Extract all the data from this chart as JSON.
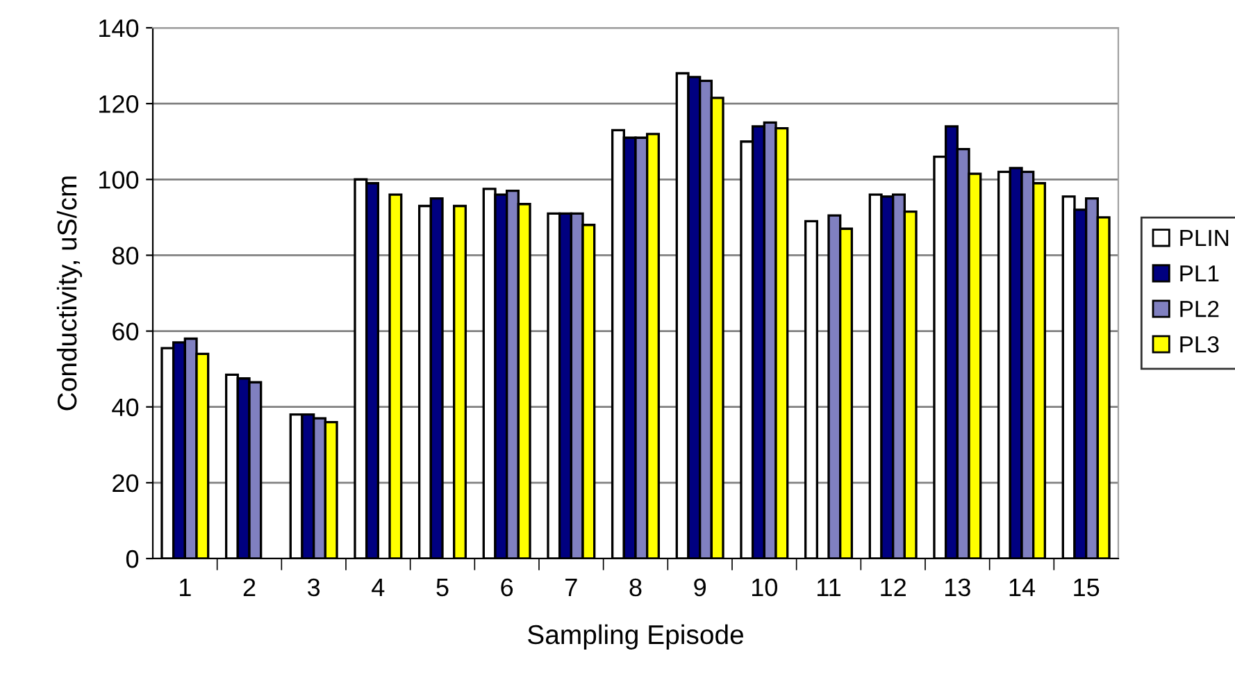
{
  "chart_data": {
    "type": "bar",
    "xlabel": "Sampling Episode",
    "ylabel": "Conductivity, uS/cm",
    "categories": [
      "1",
      "2",
      "3",
      "4",
      "5",
      "6",
      "7",
      "8",
      "9",
      "10",
      "11",
      "12",
      "13",
      "14",
      "15"
    ],
    "series": [
      {
        "name": "PLIN",
        "color": "#ffffff",
        "values": [
          55.5,
          48.5,
          38,
          100,
          93,
          97.5,
          91,
          113,
          128,
          110,
          89,
          96,
          106,
          102,
          95.5
        ]
      },
      {
        "name": "PL1",
        "color": "#000080",
        "values": [
          57,
          47.5,
          38,
          99,
          95,
          96,
          91,
          111,
          127,
          114,
          null,
          95.5,
          114,
          103,
          92
        ]
      },
      {
        "name": "PL2",
        "color": "#8080c0",
        "values": [
          58,
          46.5,
          37,
          null,
          null,
          97,
          91,
          111,
          126,
          115,
          90.5,
          96,
          108,
          102,
          95
        ]
      },
      {
        "name": "PL3",
        "color": "#ffff00",
        "values": [
          54,
          null,
          36,
          96,
          93,
          93.5,
          88,
          112,
          121.5,
          113.5,
          87,
          91.5,
          101.5,
          99,
          90
        ]
      }
    ],
    "ylim": [
      0,
      140
    ],
    "yticks": [
      0,
      20,
      40,
      60,
      80,
      100,
      120,
      140
    ],
    "grid": "y",
    "legend": "right"
  }
}
